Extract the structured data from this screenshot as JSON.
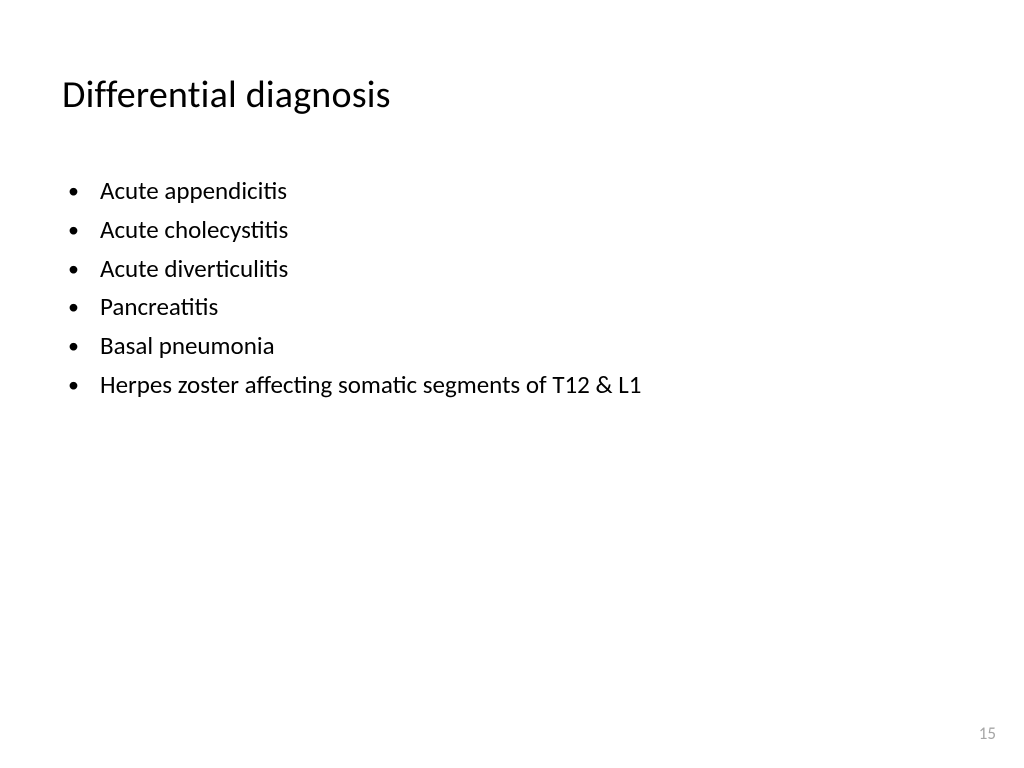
{
  "slide": {
    "title": "Differential diagnosis",
    "bullets": [
      "Acute appendicitis",
      "Acute cholecystitis",
      "Acute diverticulitis",
      "Pancreatitis",
      "Basal pneumonia",
      "Herpes zoster affecting somatic segments of T12 & L1"
    ],
    "page_number": "15"
  },
  "style": {
    "background_color": "#ffffff",
    "title_color": "#000000",
    "title_fontsize": 38,
    "body_color": "#000000",
    "body_fontsize": 25,
    "page_number_color": "#a6a6a6",
    "page_number_fontsize": 17,
    "font_family": "Calibri"
  }
}
